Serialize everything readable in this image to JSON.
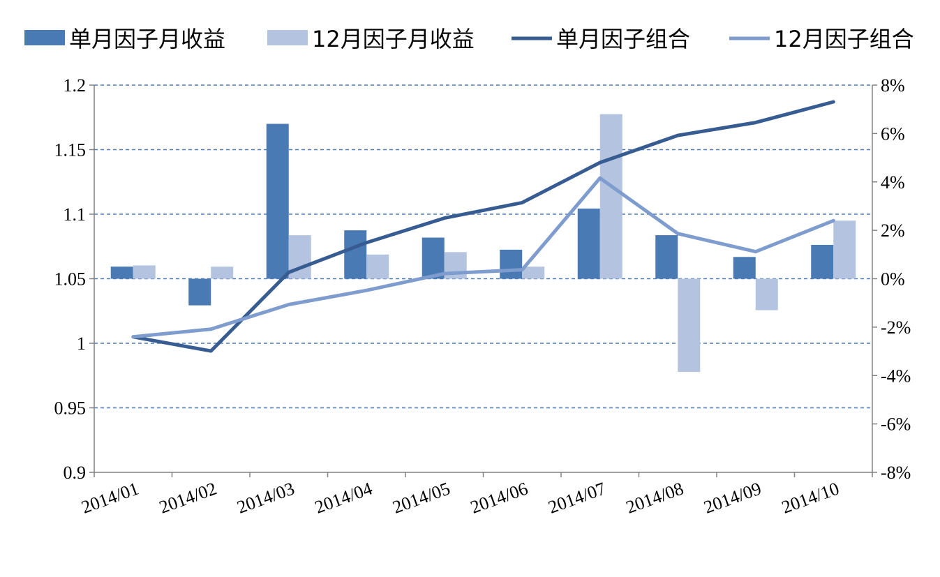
{
  "chart_data": {
    "type": "bar",
    "categories": [
      "2014/01",
      "2014/02",
      "2014/03",
      "2014/04",
      "2014/05",
      "2014/06",
      "2014/07",
      "2014/08",
      "2014/09",
      "2014/10"
    ],
    "bar_series": [
      {
        "name": "单月因子月收益",
        "axis": "right",
        "color": "#4A7AB4",
        "values": [
          0.5,
          -1.1,
          6.4,
          2.0,
          1.7,
          1.2,
          2.9,
          1.8,
          0.9,
          1.4
        ]
      },
      {
        "name": "12月因子月收益",
        "axis": "right",
        "color": "#B4C4E0",
        "values": [
          0.55,
          0.5,
          1.8,
          1.0,
          1.1,
          0.5,
          6.8,
          -3.85,
          -1.3,
          2.4
        ]
      }
    ],
    "line_series": [
      {
        "name": "单月因子组合",
        "axis": "left",
        "color": "#375C92",
        "values": [
          1.005,
          0.994,
          1.055,
          1.078,
          1.097,
          1.109,
          1.14,
          1.161,
          1.171,
          1.187
        ]
      },
      {
        "name": "12月因子组合",
        "axis": "left",
        "color": "#7F9CCE",
        "values": [
          1.005,
          1.011,
          1.03,
          1.041,
          1.054,
          1.057,
          1.128,
          1.085,
          1.071,
          1.095
        ]
      }
    ],
    "left_axis": {
      "min": 0.9,
      "max": 1.2,
      "ticks": [
        "0.9",
        "0.95",
        "1",
        "1.05",
        "1.1",
        "1.15",
        "1.2"
      ]
    },
    "right_axis": {
      "min": -8,
      "max": 8,
      "ticks": [
        "-8%",
        "-6%",
        "-4%",
        "-2%",
        "0%",
        "2%",
        "4%",
        "6%",
        "8%"
      ]
    },
    "grid": true,
    "legend_position": "top"
  }
}
